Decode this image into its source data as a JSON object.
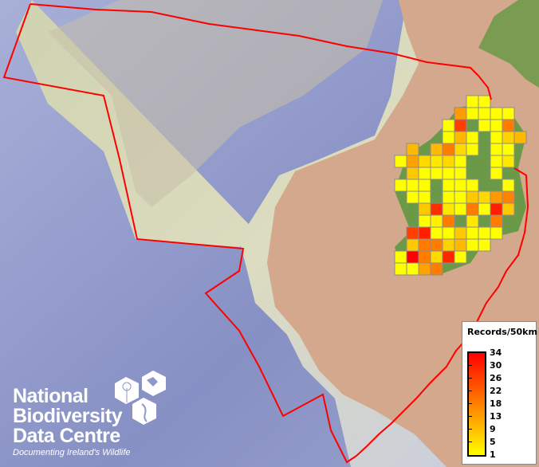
{
  "legend": {
    "title": "Records/50km",
    "ticks": [
      "34",
      "30",
      "26",
      "22",
      "18",
      "13",
      "9",
      "5",
      "1"
    ],
    "min": 1,
    "max": 34,
    "color_low": "#ffff00",
    "color_mid": "#ff8000",
    "color_high": "#ff0000"
  },
  "logo": {
    "lines": [
      "National",
      "Biodiversity",
      "Data Centre"
    ],
    "tagline": "Documenting Ireland's Wildlife"
  },
  "grid_records": [
    [
      null,
      null,
      null,
      null,
      null,
      null,
      1,
      1,
      null,
      null,
      null
    ],
    [
      null,
      null,
      null,
      null,
      null,
      14,
      1,
      1,
      1,
      1,
      null
    ],
    [
      null,
      null,
      null,
      null,
      1,
      26,
      null,
      1,
      1,
      18,
      null
    ],
    [
      null,
      null,
      null,
      null,
      1,
      10,
      1,
      null,
      1,
      7,
      10
    ],
    [
      null,
      10,
      null,
      10,
      18,
      6,
      1,
      null,
      1,
      1,
      null
    ],
    [
      1,
      13,
      6,
      4,
      6,
      1,
      null,
      null,
      1,
      4,
      null
    ],
    [
      null,
      8,
      1,
      1,
      1,
      1,
      null,
      null,
      1,
      null,
      null
    ],
    [
      1,
      1,
      1,
      null,
      1,
      1,
      1,
      null,
      null,
      1,
      null
    ],
    [
      null,
      1,
      1,
      null,
      1,
      1,
      8,
      6,
      14,
      17,
      null
    ],
    [
      null,
      null,
      8,
      28,
      4,
      1,
      18,
      1,
      30,
      8,
      null
    ],
    [
      null,
      null,
      1,
      3,
      18,
      null,
      4,
      null,
      18,
      null,
      null
    ],
    [
      null,
      26,
      30,
      1,
      1,
      8,
      1,
      1,
      1,
      null,
      null
    ],
    [
      null,
      8,
      18,
      18,
      7,
      10,
      1,
      1,
      null,
      null,
      null
    ],
    [
      1,
      34,
      18,
      6,
      29,
      1,
      null,
      null,
      null,
      null,
      null
    ],
    [
      1,
      1,
      13,
      18,
      null,
      null,
      null,
      null,
      null,
      null,
      null
    ]
  ],
  "colors": {
    "boundary": "#ff0000",
    "grid_outline": "#8c8c8c",
    "land_green": "#6a9a48",
    "sea_deep": "#8f98c8",
    "shelf": "#d8d8b0",
    "land_tan": "#d4a88c"
  }
}
